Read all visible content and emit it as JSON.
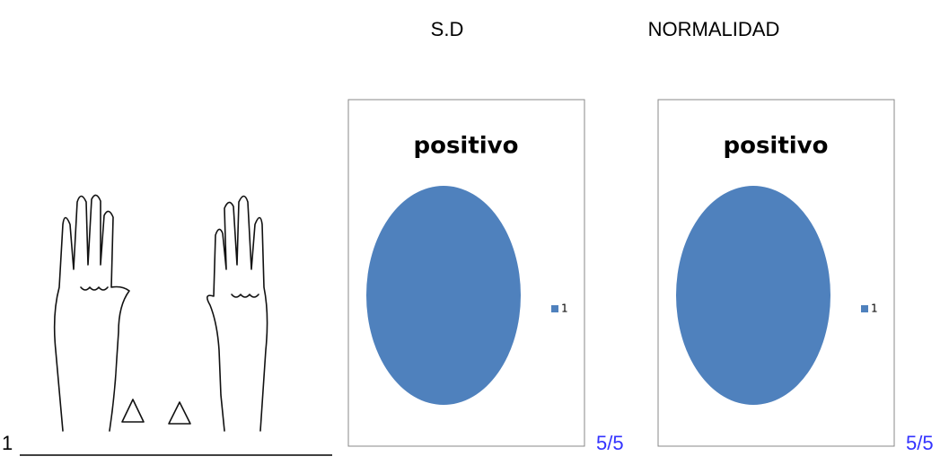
{
  "header": {
    "columns": [
      "S.D",
      "NORMALIDAD"
    ]
  },
  "row_label": "1",
  "chart_data": [
    {
      "type": "pie",
      "title": "positivo",
      "categories": [
        "1"
      ],
      "values": [
        5
      ],
      "colors": [
        "#4f81bd"
      ],
      "legend": "right"
    },
    {
      "type": "pie",
      "title": "positivo",
      "categories": [
        "1"
      ],
      "values": [
        5
      ],
      "colors": [
        "#4f81bd"
      ],
      "legend": "right"
    }
  ],
  "scores": [
    "5/5",
    "5/5"
  ]
}
